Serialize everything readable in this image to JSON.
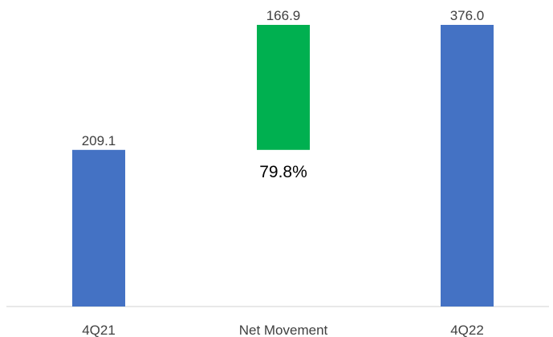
{
  "chart_data": {
    "type": "bar",
    "subtype": "waterfall",
    "categories": [
      "4Q21",
      "Net Movement",
      "4Q22"
    ],
    "series": [
      {
        "values": [
          209.1,
          166.9,
          376.0
        ],
        "base": [
          0,
          209.1,
          0
        ],
        "labels": [
          "209.1",
          "166.9",
          "376.0"
        ],
        "colors": [
          "#4472C4",
          "#00B050",
          "#4472C4"
        ]
      }
    ],
    "annotations": [
      {
        "category": "Net Movement",
        "text": "79.8%"
      }
    ],
    "ylim": [
      0,
      376.0
    ],
    "grid": false,
    "legend": "none",
    "title": "",
    "xlabel": "",
    "ylabel": ""
  }
}
